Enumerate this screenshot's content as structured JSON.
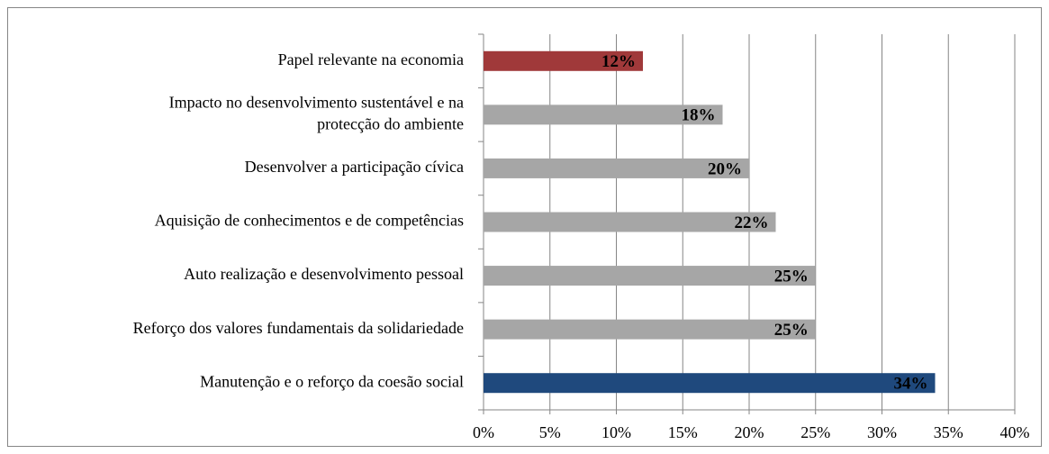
{
  "chart_data": {
    "type": "bar",
    "orientation": "horizontal",
    "categories": [
      "Papel relevante na economia",
      "Impacto  no desenvolvimento sustentável e na\nprotecção do ambiente",
      "Desenvolver a participação cívica",
      "Aquisição de conhecimentos e de competências ",
      "Auto realização e desenvolvimento pessoal",
      "Reforço dos valores fundamentais da solidariedade",
      "Manutenção e o reforço da coesão social"
    ],
    "values": [
      12,
      18,
      20,
      22,
      25,
      25,
      34
    ],
    "value_labels": [
      "12%",
      "18%",
      "20%",
      "22%",
      "25%",
      "25%",
      "34%"
    ],
    "colors": [
      "#a0393a",
      "#a6a6a6",
      "#a6a6a6",
      "#a6a6a6",
      "#a6a6a6",
      "#a6a6a6",
      "#1f497d"
    ],
    "xlim": [
      0,
      40
    ],
    "xticks": [
      {
        "value": 0,
        "label": "0%"
      },
      {
        "value": 5,
        "label": "5%"
      },
      {
        "value": 10,
        "label": "10%"
      },
      {
        "value": 15,
        "label": "15%"
      },
      {
        "value": 20,
        "label": "20%"
      },
      {
        "value": 25,
        "label": "25%"
      },
      {
        "value": 30,
        "label": "30%"
      },
      {
        "value": 35,
        "label": "35%"
      },
      {
        "value": 40,
        "label": "40%"
      }
    ],
    "grid": true
  }
}
